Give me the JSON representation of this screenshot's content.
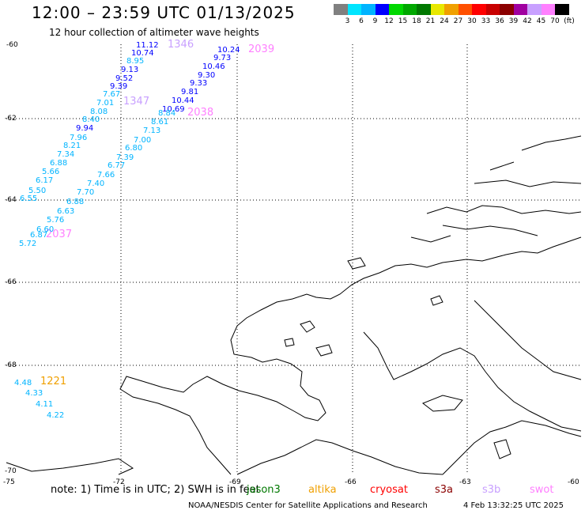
{
  "title": "12:00 – 23:59 UTC 01/13/2025",
  "subtitle": "12 hour collection of altimeter wave heights",
  "colorbar": {
    "unit_label": "(ft)",
    "ticks": [
      "3",
      "6",
      "9",
      "12",
      "15",
      "18",
      "21",
      "24",
      "27",
      "30",
      "33",
      "36",
      "39",
      "42",
      "45",
      "70"
    ],
    "colors": [
      "#808080",
      "#00e5ff",
      "#00b4ff",
      "#0000ff",
      "#00d800",
      "#00a800",
      "#007800",
      "#e8e800",
      "#f0a000",
      "#ff5000",
      "#ff0000",
      "#c80000",
      "#8b0000",
      "#a000a0",
      "#c8a0ff",
      "#ff80ff",
      "#000000"
    ]
  },
  "axes": {
    "lat_labels": [
      "-60",
      "-62",
      "-64",
      "-66",
      "-68",
      "-70"
    ],
    "lon_labels": [
      "-75",
      "-72",
      "-69",
      "-66",
      "-63",
      "-60"
    ]
  },
  "track_labels": [
    {
      "text": "1346",
      "color": "#c8a0ff"
    },
    {
      "text": "2039",
      "color": "#ff80ff"
    },
    {
      "text": "1347",
      "color": "#c8a0ff"
    },
    {
      "text": "2038",
      "color": "#ff80ff"
    },
    {
      "text": "2037",
      "color": "#ff80ff"
    },
    {
      "text": "1221",
      "color": "#f0a000"
    }
  ],
  "wave_values": [
    {
      "text": "11.12",
      "color": "#0000ff"
    },
    {
      "text": "10.74",
      "color": "#0000ff"
    },
    {
      "text": "8.95",
      "color": "#00b4ff"
    },
    {
      "text": "9.13",
      "color": "#0000ff"
    },
    {
      "text": "9.52",
      "color": "#0000ff"
    },
    {
      "text": "9.39",
      "color": "#0000ff"
    },
    {
      "text": "7.67",
      "color": "#00b4ff"
    },
    {
      "text": "7.01",
      "color": "#00b4ff"
    },
    {
      "text": "8.08",
      "color": "#00b4ff"
    },
    {
      "text": "8.40",
      "color": "#00b4ff"
    },
    {
      "text": "9.94",
      "color": "#0000ff"
    },
    {
      "text": "7.96",
      "color": "#00b4ff"
    },
    {
      "text": "8.21",
      "color": "#00b4ff"
    },
    {
      "text": "7.34",
      "color": "#00b4ff"
    },
    {
      "text": "6.88",
      "color": "#00b4ff"
    },
    {
      "text": "5.66",
      "color": "#00b4ff"
    },
    {
      "text": "6.17",
      "color": "#00b4ff"
    },
    {
      "text": "5.50",
      "color": "#00b4ff"
    },
    {
      "text": "6.55",
      "color": "#00b4ff"
    },
    {
      "text": "10.24",
      "color": "#0000ff"
    },
    {
      "text": "9.73",
      "color": "#0000ff"
    },
    {
      "text": "10.46",
      "color": "#0000ff"
    },
    {
      "text": "9.30",
      "color": "#0000ff"
    },
    {
      "text": "9.33",
      "color": "#0000ff"
    },
    {
      "text": "9.81",
      "color": "#0000ff"
    },
    {
      "text": "10.44",
      "color": "#0000ff"
    },
    {
      "text": "10.69",
      "color": "#0000ff"
    },
    {
      "text": "8.84",
      "color": "#00b4ff"
    },
    {
      "text": "8.61",
      "color": "#00b4ff"
    },
    {
      "text": "7.13",
      "color": "#00b4ff"
    },
    {
      "text": "7.00",
      "color": "#00b4ff"
    },
    {
      "text": "6.80",
      "color": "#00b4ff"
    },
    {
      "text": "7.39",
      "color": "#00b4ff"
    },
    {
      "text": "6.77",
      "color": "#00b4ff"
    },
    {
      "text": "7.66",
      "color": "#00b4ff"
    },
    {
      "text": "7.40",
      "color": "#00b4ff"
    },
    {
      "text": "7.70",
      "color": "#00b4ff"
    },
    {
      "text": "6.88",
      "color": "#00b4ff"
    },
    {
      "text": "6.63",
      "color": "#00b4ff"
    },
    {
      "text": "5.76",
      "color": "#00b4ff"
    },
    {
      "text": "6.60",
      "color": "#00b4ff"
    },
    {
      "text": "6.87",
      "color": "#00b4ff"
    },
    {
      "text": "5.72",
      "color": "#00b4ff"
    },
    {
      "text": "4.48",
      "color": "#00b4ff"
    },
    {
      "text": "4.33",
      "color": "#00b4ff"
    },
    {
      "text": "4.11",
      "color": "#00b4ff"
    },
    {
      "text": "4.22",
      "color": "#00b4ff"
    }
  ],
  "footer": {
    "note": "note:  1) Time is in UTC;  2) SWH is in feet",
    "satellites": [
      {
        "name": "jason3",
        "color": "#007800"
      },
      {
        "name": "altika",
        "color": "#f0a000"
      },
      {
        "name": "cryosat",
        "color": "#ff0000"
      },
      {
        "name": "s3a",
        "color": "#8b0000"
      },
      {
        "name": "s3b",
        "color": "#c8a0ff"
      },
      {
        "name": "swot",
        "color": "#ff80ff"
      }
    ],
    "credit": "NOAA/NESDIS Center for Satellite Applications and Research",
    "timestamp": "4 Feb 13:32:25 UTC 2025"
  }
}
